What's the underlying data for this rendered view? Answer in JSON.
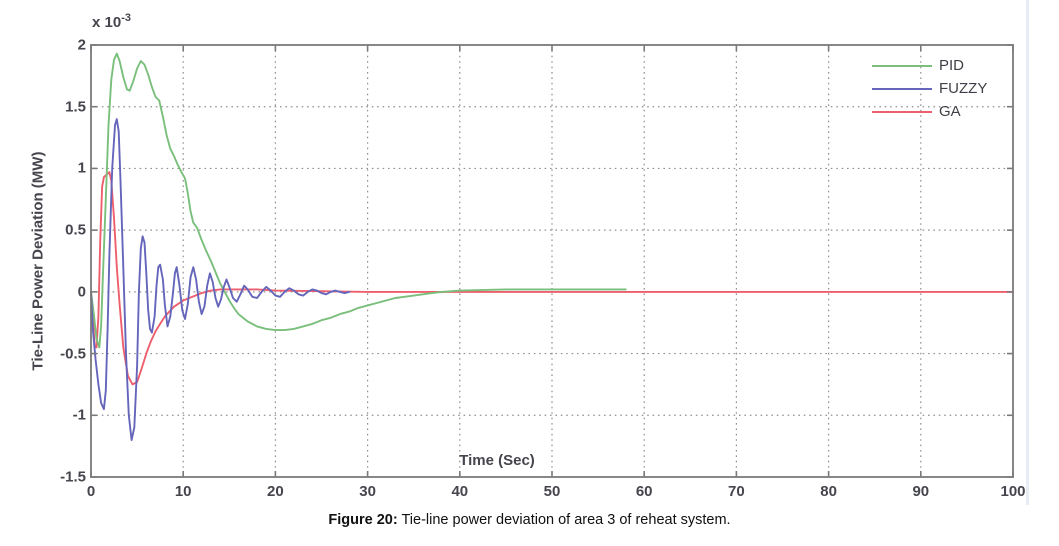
{
  "figure": {
    "caption_prefix": "Figure 20:",
    "caption_text": " Tie-line power deviation of area 3 of reheat system."
  },
  "chart_data": {
    "type": "line",
    "title": "",
    "xlabel": "Time (Sec)",
    "ylabel": "Tie-Line Power Deviation (MW)",
    "y_scale_label": "x 10",
    "y_scale_exponent": "-3",
    "xlim": [
      0,
      100
    ],
    "ylim": [
      -1.5,
      2
    ],
    "xticks": [
      "0",
      "10",
      "20",
      "30",
      "40",
      "50",
      "60",
      "70",
      "80",
      "90",
      "100"
    ],
    "yticks": [
      "-1.5",
      "-1",
      "-0.5",
      "0",
      "0.5",
      "1",
      "1.5",
      "2"
    ],
    "grid": true,
    "grid_style": "dotted",
    "legend_position": "top-right",
    "axis_color": "#7a7a7a",
    "grid_color": "#909090",
    "value_unit": "1e-3 MW",
    "series": [
      {
        "name": "PID",
        "color": "#7abf7b",
        "points": [
          [
            0,
            0
          ],
          [
            0.3,
            -0.18
          ],
          [
            0.6,
            -0.38
          ],
          [
            0.9,
            -0.45
          ],
          [
            1.1,
            -0.28
          ],
          [
            1.3,
            0.15
          ],
          [
            1.6,
            0.75
          ],
          [
            1.9,
            1.35
          ],
          [
            2.2,
            1.72
          ],
          [
            2.5,
            1.88
          ],
          [
            2.8,
            1.93
          ],
          [
            3.1,
            1.87
          ],
          [
            3.5,
            1.74
          ],
          [
            3.9,
            1.64
          ],
          [
            4.2,
            1.63
          ],
          [
            4.6,
            1.71
          ],
          [
            5.0,
            1.81
          ],
          [
            5.4,
            1.87
          ],
          [
            5.8,
            1.84
          ],
          [
            6.2,
            1.76
          ],
          [
            6.6,
            1.66
          ],
          [
            7.0,
            1.58
          ],
          [
            7.4,
            1.55
          ],
          [
            7.8,
            1.42
          ],
          [
            8.2,
            1.27
          ],
          [
            8.6,
            1.16
          ],
          [
            9.0,
            1.1
          ],
          [
            9.4,
            1.03
          ],
          [
            9.8,
            0.97
          ],
          [
            10.2,
            0.92
          ],
          [
            10.5,
            0.8
          ],
          [
            10.8,
            0.65
          ],
          [
            11.1,
            0.56
          ],
          [
            11.5,
            0.52
          ],
          [
            12.0,
            0.42
          ],
          [
            12.5,
            0.33
          ],
          [
            13.0,
            0.25
          ],
          [
            13.5,
            0.16
          ],
          [
            14.0,
            0.07
          ],
          [
            14.5,
            0.0
          ],
          [
            15.0,
            -0.07
          ],
          [
            15.5,
            -0.13
          ],
          [
            16,
            -0.18
          ],
          [
            17,
            -0.24
          ],
          [
            18,
            -0.28
          ],
          [
            19,
            -0.3
          ],
          [
            20,
            -0.31
          ],
          [
            21,
            -0.31
          ],
          [
            22,
            -0.3
          ],
          [
            23,
            -0.28
          ],
          [
            24,
            -0.26
          ],
          [
            25,
            -0.23
          ],
          [
            26,
            -0.21
          ],
          [
            27,
            -0.18
          ],
          [
            28,
            -0.16
          ],
          [
            29,
            -0.13
          ],
          [
            30,
            -0.11
          ],
          [
            31,
            -0.09
          ],
          [
            32,
            -0.07
          ],
          [
            33,
            -0.05
          ],
          [
            34,
            -0.04
          ],
          [
            35,
            -0.03
          ],
          [
            36,
            -0.02
          ],
          [
            37,
            -0.01
          ],
          [
            38,
            0.0
          ],
          [
            40,
            0.01
          ],
          [
            45,
            0.02
          ],
          [
            50,
            0.02
          ],
          [
            55,
            0.02
          ],
          [
            58,
            0.02
          ]
        ]
      },
      {
        "name": "FUZZY",
        "color": "#6565bb",
        "points": [
          [
            0,
            0
          ],
          [
            0.2,
            -0.3
          ],
          [
            0.5,
            -0.55
          ],
          [
            0.8,
            -0.75
          ],
          [
            1.1,
            -0.9
          ],
          [
            1.4,
            -0.95
          ],
          [
            1.6,
            -0.8
          ],
          [
            1.8,
            -0.3
          ],
          [
            2.0,
            0.3
          ],
          [
            2.3,
            1.0
          ],
          [
            2.6,
            1.35
          ],
          [
            2.8,
            1.4
          ],
          [
            3.0,
            1.3
          ],
          [
            3.2,
            0.9
          ],
          [
            3.5,
            0.2
          ],
          [
            3.8,
            -0.5
          ],
          [
            4.1,
            -1.0
          ],
          [
            4.4,
            -1.2
          ],
          [
            4.7,
            -1.1
          ],
          [
            5.0,
            -0.6
          ],
          [
            5.2,
            0.0
          ],
          [
            5.4,
            0.35
          ],
          [
            5.6,
            0.45
          ],
          [
            5.8,
            0.4
          ],
          [
            6.0,
            0.15
          ],
          [
            6.2,
            -0.15
          ],
          [
            6.4,
            -0.3
          ],
          [
            6.6,
            -0.33
          ],
          [
            6.9,
            -0.2
          ],
          [
            7.1,
            0.05
          ],
          [
            7.3,
            0.2
          ],
          [
            7.5,
            0.22
          ],
          [
            7.8,
            0.1
          ],
          [
            8.0,
            -0.1
          ],
          [
            8.3,
            -0.28
          ],
          [
            8.6,
            -0.2
          ],
          [
            8.9,
            0.0
          ],
          [
            9.1,
            0.15
          ],
          [
            9.3,
            0.2
          ],
          [
            9.6,
            0.05
          ],
          [
            9.9,
            -0.15
          ],
          [
            10.2,
            -0.22
          ],
          [
            10.5,
            -0.1
          ],
          [
            10.8,
            0.12
          ],
          [
            11.1,
            0.2
          ],
          [
            11.4,
            0.1
          ],
          [
            11.7,
            -0.08
          ],
          [
            12.0,
            -0.18
          ],
          [
            12.3,
            -0.12
          ],
          [
            12.6,
            0.05
          ],
          [
            12.9,
            0.15
          ],
          [
            13.2,
            0.08
          ],
          [
            13.5,
            -0.05
          ],
          [
            13.8,
            -0.12
          ],
          [
            14.1,
            -0.06
          ],
          [
            14.4,
            0.04
          ],
          [
            14.7,
            0.1
          ],
          [
            15.0,
            0.04
          ],
          [
            15.4,
            -0.05
          ],
          [
            15.8,
            -0.08
          ],
          [
            16.2,
            -0.02
          ],
          [
            16.6,
            0.05
          ],
          [
            17,
            0.02
          ],
          [
            17.5,
            -0.04
          ],
          [
            18,
            -0.05
          ],
          [
            18.5,
            0.0
          ],
          [
            19,
            0.04
          ],
          [
            19.5,
            0.01
          ],
          [
            20,
            -0.03
          ],
          [
            20.5,
            -0.04
          ],
          [
            21,
            0.0
          ],
          [
            21.5,
            0.03
          ],
          [
            22,
            0.01
          ],
          [
            22.5,
            -0.02
          ],
          [
            23,
            -0.03
          ],
          [
            23.5,
            0.0
          ],
          [
            24,
            0.02
          ],
          [
            24.5,
            0.01
          ],
          [
            25,
            -0.01
          ],
          [
            25.5,
            -0.02
          ],
          [
            26,
            0.0
          ],
          [
            26.5,
            0.01
          ],
          [
            27,
            0.0
          ],
          [
            27.5,
            -0.01
          ],
          [
            28,
            0.0
          ]
        ]
      },
      {
        "name": "GA",
        "color": "#ee5f6d",
        "points": [
          [
            0,
            0
          ],
          [
            0.2,
            -0.2
          ],
          [
            0.4,
            -0.44
          ],
          [
            0.6,
            -0.45
          ],
          [
            0.8,
            -0.2
          ],
          [
            1.0,
            0.4
          ],
          [
            1.2,
            0.85
          ],
          [
            1.4,
            0.93
          ],
          [
            1.7,
            0.95
          ],
          [
            2.0,
            0.97
          ],
          [
            2.2,
            0.9
          ],
          [
            2.5,
            0.6
          ],
          [
            2.8,
            0.2
          ],
          [
            3.1,
            -0.1
          ],
          [
            3.5,
            -0.45
          ],
          [
            4.0,
            -0.68
          ],
          [
            4.5,
            -0.75
          ],
          [
            5.0,
            -0.73
          ],
          [
            5.5,
            -0.62
          ],
          [
            6.0,
            -0.5
          ],
          [
            6.5,
            -0.4
          ],
          [
            7.0,
            -0.32
          ],
          [
            7.5,
            -0.26
          ],
          [
            8.0,
            -0.2
          ],
          [
            9,
            -0.12
          ],
          [
            10,
            -0.07
          ],
          [
            11,
            -0.04
          ],
          [
            12,
            -0.01
          ],
          [
            13,
            0.01
          ],
          [
            14,
            0.02
          ],
          [
            15,
            0.02
          ],
          [
            16,
            0.02
          ],
          [
            18,
            0.02
          ],
          [
            20,
            0.01
          ],
          [
            25,
            0.005
          ],
          [
            30,
            0.0
          ],
          [
            40,
            0.0
          ],
          [
            60,
            0.0
          ],
          [
            80,
            0.0
          ],
          [
            100,
            0.0
          ]
        ]
      }
    ]
  }
}
